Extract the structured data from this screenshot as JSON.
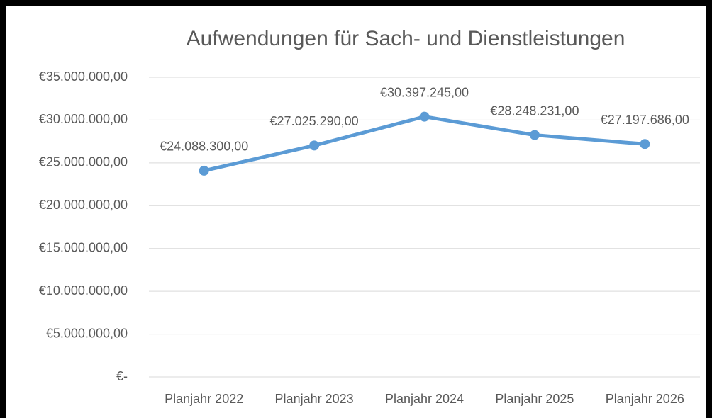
{
  "chart_data": {
    "type": "line",
    "title": "Aufwendungen für Sach- und Dienstleistungen",
    "categories": [
      "Planjahr 2022",
      "Planjahr 2023",
      "Planjahr 2024",
      "Planjahr 2025",
      "Planjahr 2026"
    ],
    "series": [
      {
        "name": "Aufwendungen für Sach- und Dienstleistungen",
        "color": "#5b9bd5",
        "values": [
          24088300,
          27025290,
          30397245,
          28248231,
          27197686
        ],
        "value_labels": [
          "€24.088.300,00",
          "€27.025.290,00",
          "€30.397.245,00",
          "€28.248.231,00",
          "€27.197.686,00"
        ]
      }
    ],
    "ylim": [
      0,
      35000000
    ],
    "yticks": [
      {
        "value": 0,
        "label": "€-"
      },
      {
        "value": 5000000,
        "label": "€5.000.000,00"
      },
      {
        "value": 10000000,
        "label": "€10.000.000,00"
      },
      {
        "value": 15000000,
        "label": "€15.000.000,00"
      },
      {
        "value": 20000000,
        "label": "€20.000.000,00"
      },
      {
        "value": 25000000,
        "label": "€25.000.000,00"
      },
      {
        "value": 30000000,
        "label": "€30.000.000,00"
      },
      {
        "value": 35000000,
        "label": "€35.000.000,00"
      }
    ],
    "grid": true
  }
}
